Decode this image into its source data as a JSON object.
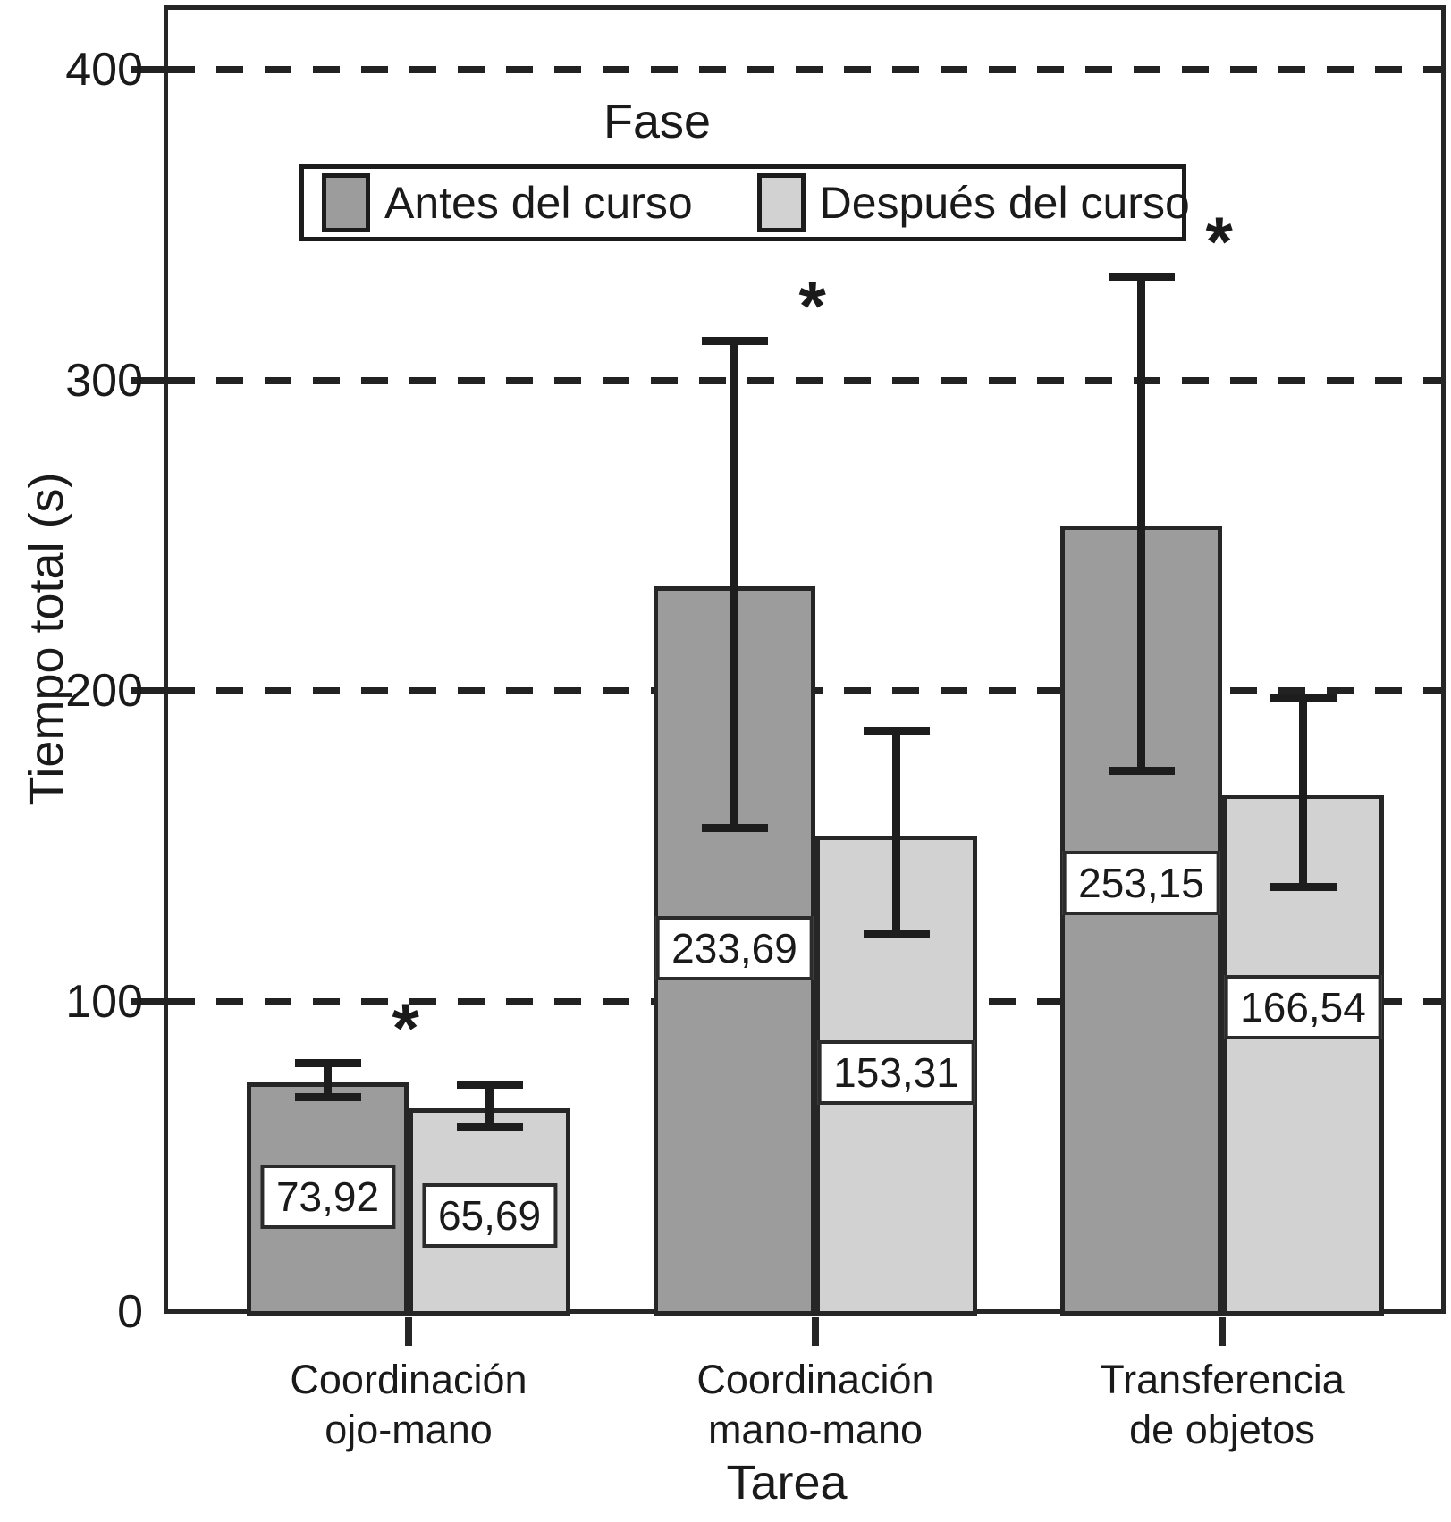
{
  "figure": {
    "legend": {
      "title": "Fase",
      "items": [
        {
          "label": "Antes del curso",
          "color": "#9c9c9c"
        },
        {
          "label": "Después del curso",
          "color": "#d2d2d2"
        }
      ]
    },
    "significance_marker": "*",
    "line_color": "#1d1d1d",
    "grid_color": "#222222"
  },
  "chart_data": {
    "type": "bar",
    "title": "",
    "xlabel": "Tarea",
    "ylabel": "Tiempo total (s)",
    "ylim": [
      0,
      420
    ],
    "grid": "dashed-horizontal",
    "legend_position": "top-inside",
    "y_ticks": [
      {
        "label": "0",
        "value": 0
      },
      {
        "label": "100",
        "value": 100
      },
      {
        "label": "200",
        "value": 200
      },
      {
        "label": "300",
        "value": 300
      },
      {
        "label": "400",
        "value": 400
      }
    ],
    "categories": [
      [
        "Coordinación",
        "ojo-mano"
      ],
      [
        "Coordinación",
        "mano-mano"
      ],
      [
        "Transferencia",
        "de objetos"
      ]
    ],
    "series": [
      {
        "name": "Antes del curso",
        "color": "#9c9c9c",
        "values": [
          73.92,
          233.69,
          253.15
        ],
        "value_labels": [
          "73,92",
          "233,69",
          "253,15"
        ],
        "error_low": [
          69.4,
          155.9,
          174.5
        ],
        "error_high": [
          80.3,
          312.8,
          333.4
        ],
        "label_y": [
          37,
          117,
          138
        ]
      },
      {
        "name": "Después del curso",
        "color": "#d2d2d2",
        "values": [
          65.69,
          153.31,
          166.54
        ],
        "value_labels": [
          "65,69",
          "153,31",
          "166,54"
        ],
        "error_low": [
          59.9,
          121.7,
          136.9
        ],
        "error_high": [
          73.4,
          187.4,
          198.0
        ],
        "label_y": [
          31,
          77,
          98
        ]
      }
    ],
    "significant_groups": [
      true,
      true,
      true
    ]
  }
}
